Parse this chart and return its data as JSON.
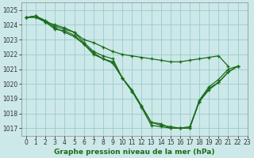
{
  "title": "Graphe pression niveau de la mer (hPa)",
  "bg_color": "#cce8e8",
  "grid_color": "#99cccc",
  "line_color": "#1a6b1a",
  "xlim": [
    -0.5,
    23
  ],
  "ylim": [
    1016.5,
    1025.5
  ],
  "yticks": [
    1017,
    1018,
    1019,
    1020,
    1021,
    1022,
    1023,
    1024,
    1025
  ],
  "xticks": [
    0,
    1,
    2,
    3,
    4,
    5,
    6,
    7,
    8,
    9,
    10,
    11,
    12,
    13,
    14,
    15,
    16,
    17,
    18,
    19,
    20,
    21,
    22,
    23
  ],
  "series": [
    [
      1024.5,
      1024.6,
      1024.2,
      1024.0,
      1023.8,
      1023.5,
      1023.0,
      1022.8,
      1022.5,
      1022.2,
      1022.0,
      1021.9,
      1021.8,
      1021.7,
      1021.6,
      1021.5,
      1021.5,
      1021.6,
      1021.7,
      1021.8,
      1021.9,
      1021.2,
      null,
      null
    ],
    [
      1024.5,
      1024.6,
      1024.2,
      1023.8,
      1023.5,
      1023.2,
      1022.7,
      1022.1,
      1021.7,
      1021.5,
      1020.4,
      1019.5,
      1018.5,
      1017.4,
      1017.2,
      1017.1,
      1017.0,
      1017.0,
      1018.9,
      1019.8,
      1020.3,
      1021.0,
      1021.2,
      null
    ],
    [
      1024.5,
      1024.5,
      1024.2,
      1023.7,
      1023.6,
      1023.3,
      1022.7,
      1022.0,
      1021.7,
      1021.4,
      1020.4,
      1019.6,
      1018.5,
      1017.4,
      1017.3,
      1017.0,
      1017.0,
      1017.1,
      1018.8,
      1019.6,
      1020.1,
      1020.8,
      1021.2,
      null
    ],
    [
      1024.5,
      1024.6,
      1024.3,
      1023.9,
      1023.7,
      1023.5,
      1022.8,
      1022.2,
      1021.9,
      1021.7,
      1020.4,
      1019.5,
      1018.4,
      1017.2,
      1017.1,
      1017.0,
      1017.0,
      1017.0,
      1018.8,
      1019.7,
      1020.1,
      1020.8,
      1021.2,
      null
    ]
  ],
  "tick_fontsize": 5.5,
  "label_fontsize": 6.5,
  "linewidth": 0.9,
  "markersize": 3.0
}
